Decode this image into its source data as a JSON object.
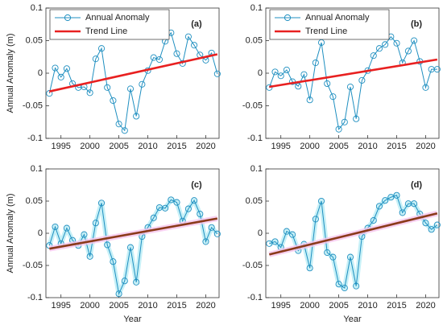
{
  "chart_data": [
    {
      "type": "line",
      "label": "(a)",
      "ylabel": "Annual Anomaly (m)",
      "legend": "upper left",
      "x": [
        1993,
        1994,
        1995,
        1996,
        1997,
        1998,
        1999,
        2000,
        2001,
        2002,
        2003,
        2004,
        2005,
        2006,
        2007,
        2008,
        2009,
        2010,
        2011,
        2012,
        2013,
        2014,
        2015,
        2016,
        2017,
        2018,
        2019,
        2020,
        2021,
        2022
      ],
      "series": [
        {
          "name": "Annual Anomaly",
          "color": "#1f8fc0",
          "values": [
            -0.031,
            0.008,
            -0.006,
            0.007,
            -0.016,
            -0.022,
            -0.021,
            -0.03,
            0.022,
            0.038,
            -0.022,
            -0.042,
            -0.078,
            -0.088,
            -0.024,
            -0.066,
            -0.017,
            0.004,
            0.024,
            0.021,
            0.049,
            0.062,
            0.03,
            0.015,
            0.056,
            0.043,
            0.028,
            0.02,
            0.031,
            -0.001
          ]
        },
        {
          "name": "Trend Line",
          "color": "#e82020",
          "x": [
            1993,
            2022
          ],
          "values": [
            -0.028,
            0.029
          ]
        }
      ],
      "xlim": [
        1992.4,
        2022.3
      ],
      "ylim": [
        -0.1,
        0.1
      ],
      "xticks": [
        1995,
        2000,
        2005,
        2010,
        2015,
        2020
      ],
      "yticks": [
        -0.1,
        -0.05,
        0,
        0.05,
        0.1
      ]
    },
    {
      "type": "line",
      "label": "(b)",
      "legend": "upper left",
      "x": [
        1993,
        1994,
        1995,
        1996,
        1997,
        1998,
        1999,
        2000,
        2001,
        2002,
        2003,
        2004,
        2005,
        2006,
        2007,
        2008,
        2009,
        2010,
        2011,
        2012,
        2013,
        2014,
        2015,
        2016,
        2017,
        2018,
        2019,
        2020,
        2021,
        2022
      ],
      "series": [
        {
          "name": "Annual Anomaly",
          "color": "#1f8fc0",
          "values": [
            -0.022,
            0.002,
            -0.004,
            0.005,
            -0.013,
            -0.02,
            -0.002,
            -0.041,
            0.016,
            0.047,
            -0.016,
            -0.036,
            -0.086,
            -0.075,
            -0.021,
            -0.07,
            -0.011,
            0.004,
            0.027,
            0.038,
            0.044,
            0.056,
            0.046,
            0.016,
            0.034,
            0.05,
            0.018,
            -0.022,
            0.006,
            0.006
          ]
        },
        {
          "name": "Trend Line",
          "color": "#e82020",
          "x": [
            1993,
            2022
          ],
          "values": [
            -0.021,
            0.021
          ]
        }
      ],
      "xlim": [
        1992.4,
        2022.3
      ],
      "ylim": [
        -0.1,
        0.1
      ],
      "xticks": [
        1995,
        2000,
        2005,
        2010,
        2015,
        2020
      ],
      "yticks": [
        -0.1,
        -0.05,
        0,
        0.05,
        0.1
      ]
    },
    {
      "type": "line",
      "label": "(c)",
      "ylabel": "Annual Anomaly (m)",
      "xlabel": "Year",
      "glow": true,
      "x": [
        1993,
        1994,
        1995,
        1996,
        1997,
        1998,
        1999,
        2000,
        2001,
        2002,
        2003,
        2004,
        2005,
        2006,
        2007,
        2008,
        2009,
        2010,
        2011,
        2012,
        2013,
        2014,
        2015,
        2016,
        2017,
        2018,
        2019,
        2020,
        2021,
        2022
      ],
      "series": [
        {
          "color": "#1f8fc0",
          "values": [
            -0.019,
            0.01,
            -0.016,
            0.008,
            -0.011,
            -0.019,
            -0.002,
            -0.036,
            0.016,
            0.047,
            -0.018,
            -0.044,
            -0.094,
            -0.074,
            -0.022,
            -0.076,
            -0.005,
            0.009,
            0.024,
            0.04,
            0.039,
            0.052,
            0.048,
            0.019,
            0.038,
            0.051,
            0.03,
            -0.013,
            0.009,
            -0.001
          ]
        },
        {
          "color": "#8b3a1a",
          "x": [
            1993,
            2022
          ],
          "values": [
            -0.024,
            0.023
          ]
        }
      ],
      "xlim": [
        1992.4,
        2022.3
      ],
      "ylim": [
        -0.1,
        0.1
      ],
      "xticks": [
        1995,
        2000,
        2005,
        2010,
        2015,
        2020
      ],
      "yticks": [
        -0.1,
        -0.05,
        0,
        0.05,
        0.1
      ]
    },
    {
      "type": "line",
      "label": "(d)",
      "xlabel": "Year",
      "glow": true,
      "x": [
        1993,
        1994,
        1995,
        1996,
        1997,
        1998,
        1999,
        2000,
        2001,
        2002,
        2003,
        2004,
        2005,
        2006,
        2007,
        2008,
        2009,
        2010,
        2011,
        2012,
        2013,
        2014,
        2015,
        2016,
        2017,
        2018,
        2019,
        2020,
        2021,
        2022
      ],
      "series": [
        {
          "color": "#1f8fc0",
          "values": [
            -0.016,
            -0.013,
            -0.022,
            0.003,
            -0.002,
            -0.027,
            -0.017,
            -0.054,
            0.022,
            0.05,
            -0.03,
            -0.037,
            -0.079,
            -0.085,
            -0.037,
            -0.082,
            -0.005,
            0.008,
            0.02,
            0.042,
            0.051,
            0.056,
            0.059,
            0.032,
            0.046,
            0.046,
            0.03,
            0.016,
            0.006,
            0.013
          ]
        },
        {
          "color": "#8b3a1a",
          "x": [
            1993,
            2022
          ],
          "values": [
            -0.033,
            0.031
          ]
        }
      ],
      "xlim": [
        1992.4,
        2022.3
      ],
      "ylim": [
        -0.1,
        0.1
      ],
      "xticks": [
        1995,
        2000,
        2005,
        2010,
        2015,
        2020
      ],
      "yticks": [
        -0.1,
        -0.05,
        0,
        0.05,
        0.1
      ]
    }
  ]
}
